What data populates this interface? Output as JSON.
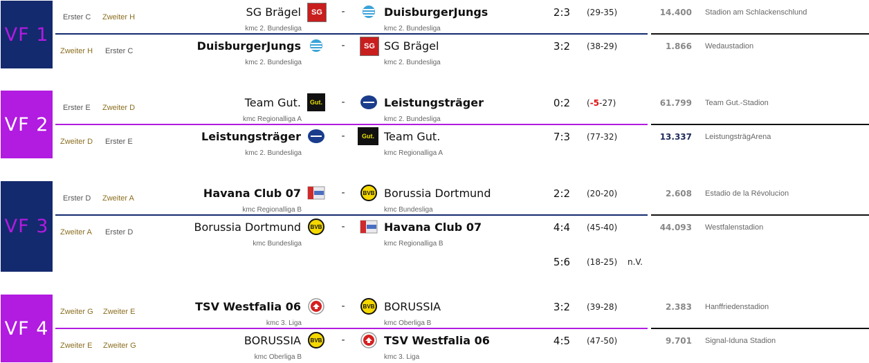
{
  "colors": {
    "navy": "#142a6e",
    "purple": "#b21be0",
    "black": "#111111"
  },
  "sections": [
    {
      "label": "VF 1",
      "legs": [
        {
          "q_left": "Erster C",
          "q_right": "Zweiter H",
          "home": "SG Brägel",
          "home_league": "kmc 2. Bundesliga",
          "away": "DuisburgerJungs",
          "away_league": "kmc 2. Bundesliga",
          "score": "2:3",
          "sub": "(29-35)",
          "att": "14.400",
          "stadium": "Stadion am Schlackenschlund",
          "winner": "away",
          "home_logo": "sg-logo",
          "away_logo": "duisburg-logo"
        },
        {
          "q_left": "Zweiter H",
          "q_right": "Erster C",
          "home": "DuisburgerJungs",
          "home_league": "kmc 2. Bundesliga",
          "away": "SG Brägel",
          "away_league": "kmc 2. Bundesliga",
          "score": "3:2",
          "sub": "(38-29)",
          "att": "1.866",
          "stadium": "Wedaustadion",
          "winner": "home",
          "home_logo": "duisburg-logo",
          "away_logo": "sg-logo"
        }
      ]
    },
    {
      "label": "VF 2",
      "legs": [
        {
          "q_left": "Erster E",
          "q_right": "Zweiter D",
          "home": "Team Gut.",
          "home_league": "kmc Regionalliga A",
          "away": "Leistungsträger",
          "away_league": "kmc 2. Bundesliga",
          "score": "0:2",
          "sub_pre": "(",
          "sub_neg": "-5",
          "sub_post": "-27)",
          "att": "61.799",
          "stadium": "Team Gut.-Stadion",
          "winner": "away",
          "home_logo": "gut-logo",
          "away_logo": "leistung-logo"
        },
        {
          "q_left": "Zweiter D",
          "q_right": "Erster E",
          "home": "Leistungsträger",
          "home_league": "kmc 2. Bundesliga",
          "away": "Team Gut.",
          "away_league": "kmc Regionalliga A",
          "score": "7:3",
          "sub": "(77-32)",
          "att": "13.337",
          "stadium": "LeistungsträgArena",
          "winner": "home",
          "home_logo": "leistung-logo",
          "away_logo": "gut-logo"
        }
      ]
    },
    {
      "label": "VF 3",
      "legs": [
        {
          "q_left": "Erster D",
          "q_right": "Zweiter A",
          "home": "Havana Club 07",
          "home_league": "kmc Regionalliga B",
          "away": "Borussia Dortmund",
          "away_league": "kmc Bundesliga",
          "score": "2:2",
          "sub": "(20-20)",
          "att": "2.608",
          "stadium": "Estadio de la Révolucion",
          "winner": "home",
          "home_logo": "havana-logo",
          "away_logo": "bvb-logo"
        },
        {
          "q_left": "Zweiter A",
          "q_right": "Erster D",
          "home": "Borussia Dortmund",
          "home_league": "kmc Bundesliga",
          "away": "Havana Club 07",
          "away_league": "kmc Regionalliga B",
          "score": "4:4",
          "sub": "(45-40)",
          "att": "44.093",
          "stadium": "Westfalenstadion",
          "winner": "away",
          "home_logo": "bvb-logo",
          "away_logo": "havana-logo"
        }
      ],
      "extra": {
        "score": "5:6",
        "sub": "(18-25)",
        "note": "n.V."
      }
    },
    {
      "label": "VF 4",
      "legs": [
        {
          "q_left": "Zweiter G",
          "q_right": "Zweiter E",
          "home": "TSV Westfalia 06",
          "home_league": "kmc 3. Liga",
          "away": "BORUSSIA",
          "away_league": "kmc Oberliga B",
          "score": "3:2",
          "sub": "(39-28)",
          "att": "2.383",
          "stadium": "Hanffriedenstadion",
          "winner": "home",
          "home_logo": "westfalia-logo",
          "away_logo": "bvb-logo"
        },
        {
          "q_left": "Zweiter E",
          "q_right": "Zweiter G",
          "home": "BORUSSIA",
          "home_league": "kmc Oberliga B",
          "away": "TSV Westfalia 06",
          "away_league": "kmc 3. Liga",
          "score": "4:5",
          "sub": "(47-50)",
          "att": "9.701",
          "stadium": "Signal-Iduna Stadion",
          "winner": "away",
          "home_logo": "bvb-logo",
          "away_logo": "westfalia-logo"
        }
      ]
    }
  ]
}
